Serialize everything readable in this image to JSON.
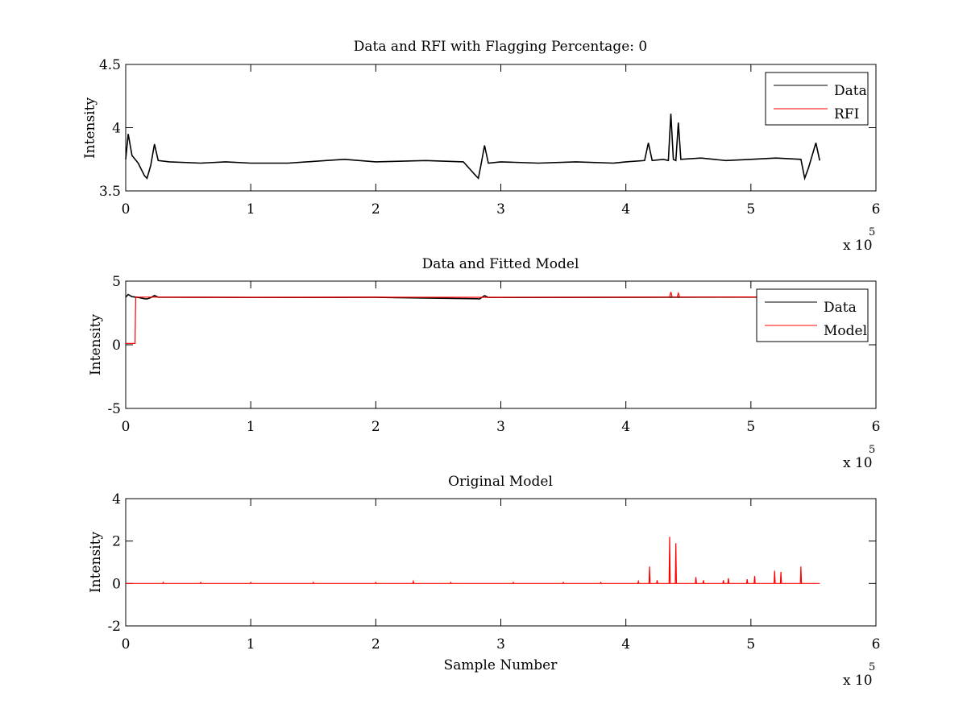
{
  "chart_data": [
    {
      "type": "line",
      "title": "Data and RFI with Flagging Percentage: 0",
      "xlabel": "",
      "ylabel": "Intensity",
      "xlim": [
        0,
        600000
      ],
      "ylim": [
        3.5,
        4.5
      ],
      "xticks": [
        0,
        100000,
        200000,
        300000,
        400000,
        500000,
        600000
      ],
      "xtick_labels": [
        "0",
        "1",
        "2",
        "3",
        "4",
        "5",
        "6"
      ],
      "yticks": [
        3.5,
        4,
        4.5
      ],
      "ytick_labels": [
        "3.5",
        "4",
        "4.5"
      ],
      "x_exponent": {
        "prefix": "x 10",
        "power": "5"
      },
      "legend_position": "top-right",
      "grid": false,
      "series": [
        {
          "name": "Data",
          "color": "#000000",
          "x": [
            0,
            2000,
            5000,
            10000,
            15000,
            17000,
            20000,
            23000,
            26000,
            35000,
            60000,
            80000,
            100000,
            130000,
            160000,
            175000,
            200000,
            240000,
            270000,
            280000,
            282000,
            284000,
            287000,
            290000,
            300000,
            330000,
            360000,
            390000,
            400000,
            415000,
            418000,
            421000,
            430000,
            434000,
            436000,
            438000,
            440000,
            442000,
            444000,
            460000,
            480000,
            500000,
            520000,
            540000,
            543000,
            546000,
            552000,
            555000
          ],
          "y": [
            3.75,
            3.95,
            3.78,
            3.72,
            3.62,
            3.6,
            3.7,
            3.87,
            3.74,
            3.73,
            3.72,
            3.73,
            3.72,
            3.72,
            3.74,
            3.75,
            3.73,
            3.74,
            3.73,
            3.62,
            3.6,
            3.7,
            3.86,
            3.72,
            3.73,
            3.72,
            3.73,
            3.72,
            3.73,
            3.74,
            3.88,
            3.74,
            3.75,
            3.74,
            4.11,
            3.75,
            3.74,
            4.04,
            3.75,
            3.76,
            3.74,
            3.75,
            3.76,
            3.75,
            3.6,
            3.68,
            3.88,
            3.74
          ]
        },
        {
          "name": "RFI",
          "color": "#ff0000",
          "x": [],
          "y": []
        }
      ]
    },
    {
      "type": "line",
      "title": "Data and Fitted Model",
      "xlabel": "",
      "ylabel": "Intensity",
      "xlim": [
        0,
        600000
      ],
      "ylim": [
        -5,
        5
      ],
      "xticks": [
        0,
        100000,
        200000,
        300000,
        400000,
        500000,
        600000
      ],
      "xtick_labels": [
        "0",
        "1",
        "2",
        "3",
        "4",
        "5",
        "6"
      ],
      "yticks": [
        -5,
        0,
        5
      ],
      "ytick_labels": [
        "-5",
        "0",
        "5"
      ],
      "x_exponent": {
        "prefix": "x 10",
        "power": "5"
      },
      "legend_position": "top-right",
      "grid": false,
      "series": [
        {
          "name": "Data",
          "color": "#000000",
          "x": [
            0,
            2000,
            5000,
            10000,
            15000,
            17000,
            20000,
            23000,
            26000,
            100000,
            200000,
            280000,
            283000,
            287000,
            290000,
            400000,
            500000,
            555000
          ],
          "y": [
            3.75,
            3.95,
            3.78,
            3.72,
            3.62,
            3.6,
            3.7,
            3.87,
            3.74,
            3.72,
            3.73,
            3.62,
            3.6,
            3.86,
            3.72,
            3.73,
            3.75,
            3.74
          ]
        },
        {
          "name": "Model",
          "color": "#ff0000",
          "x": [
            0,
            7500,
            8000,
            8500,
            100000,
            200000,
            300000,
            400000,
            435000,
            436000,
            437000,
            441000,
            442000,
            443000,
            500000,
            555000
          ],
          "y": [
            0.1,
            0.1,
            3.75,
            3.75,
            3.73,
            3.74,
            3.73,
            3.74,
            3.75,
            4.15,
            3.75,
            3.75,
            4.05,
            3.75,
            3.76,
            3.75
          ]
        }
      ]
    },
    {
      "type": "line",
      "title": "Original Model",
      "xlabel": "Sample Number",
      "ylabel": "Intensity",
      "xlim": [
        0,
        600000
      ],
      "ylim": [
        -2,
        4
      ],
      "xticks": [
        0,
        100000,
        200000,
        300000,
        400000,
        500000,
        600000
      ],
      "xtick_labels": [
        "0",
        "1",
        "2",
        "3",
        "4",
        "5",
        "6"
      ],
      "yticks": [
        -2,
        0,
        2,
        4
      ],
      "ytick_labels": [
        "-2",
        "0",
        "2",
        "4"
      ],
      "x_exponent": {
        "prefix": "x 10",
        "power": "5"
      },
      "grid": false,
      "series": [
        {
          "color": "#ff0000",
          "baseline": 0,
          "x_end": 555000,
          "spikes": [
            [
              30000,
              0.05
            ],
            [
              60000,
              0.05
            ],
            [
              100000,
              0.05
            ],
            [
              150000,
              0.05
            ],
            [
              200000,
              0.05
            ],
            [
              230000,
              0.1
            ],
            [
              260000,
              0.05
            ],
            [
              310000,
              0.05
            ],
            [
              350000,
              0.05
            ],
            [
              380000,
              0.05
            ],
            [
              410000,
              0.1
            ],
            [
              419000,
              0.8
            ],
            [
              425000,
              0.15
            ],
            [
              435000,
              2.2
            ],
            [
              440000,
              1.9
            ],
            [
              456000,
              0.3
            ],
            [
              462000,
              0.15
            ],
            [
              478000,
              0.15
            ],
            [
              482000,
              0.25
            ],
            [
              497000,
              0.2
            ],
            [
              503000,
              0.35
            ],
            [
              519000,
              0.6
            ],
            [
              524000,
              0.55
            ],
            [
              540000,
              0.8
            ]
          ]
        }
      ]
    }
  ]
}
